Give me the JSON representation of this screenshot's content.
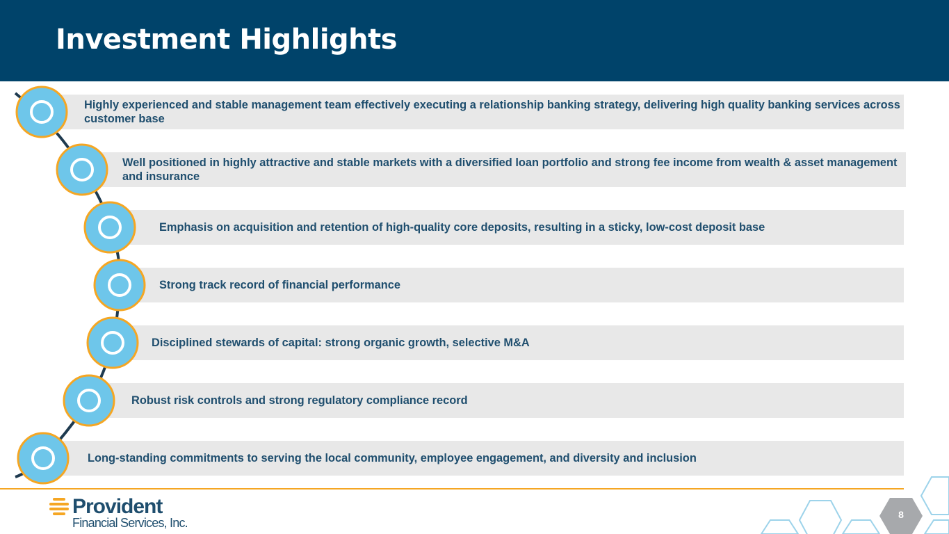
{
  "header": {
    "title": "Investment Highlights"
  },
  "highlights": [
    "Highly experienced and stable management team effectively executing a relationship banking strategy, delivering high quality banking services across customer base",
    "Well positioned in highly attractive and stable markets with a diversified loan portfolio and strong fee income from wealth & asset management and insurance",
    "Emphasis on acquisition and retention of high-quality core deposits, resulting in a sticky, low-cost deposit base",
    "Strong track record of financial performance",
    "Disciplined stewards of capital: strong organic growth, selective M&A",
    "Robust risk controls and strong regulatory compliance record",
    "Long-standing commitments to serving the local community, employee engagement, and diversity and inclusion"
  ],
  "footer": {
    "logo_name": "Provident",
    "logo_subtitle": "Financial Services, Inc.",
    "page_number": "8"
  }
}
